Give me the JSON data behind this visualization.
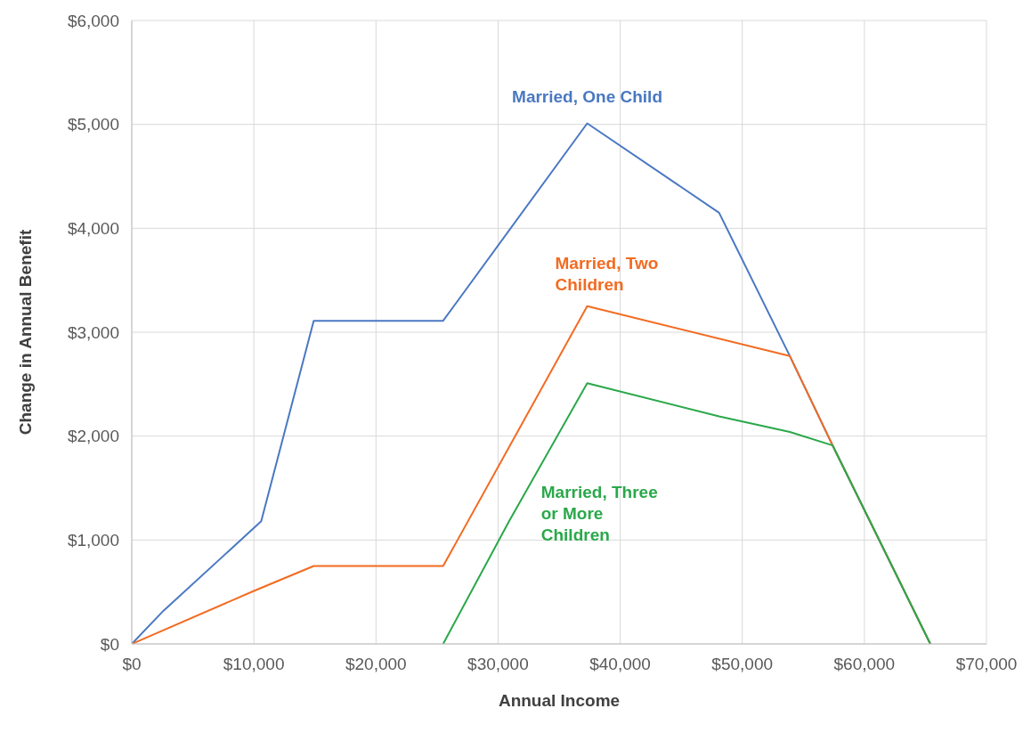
{
  "chart_data": {
    "type": "line",
    "xlabel": "Annual Income",
    "ylabel": "Change in Annual Benefit",
    "xlim": [
      0,
      70000
    ],
    "xticks": [
      {
        "value": 0,
        "label": "$0"
      },
      {
        "value": 10000,
        "label": "$10,000"
      },
      {
        "value": 20000,
        "label": "$20,000"
      },
      {
        "value": 30000,
        "label": "$30,000"
      },
      {
        "value": 40000,
        "label": "$40,000"
      },
      {
        "value": 50000,
        "label": "$50,000"
      },
      {
        "value": 60000,
        "label": "$60,000"
      },
      {
        "value": 70000,
        "label": "$70,000"
      }
    ],
    "ylim": [
      0,
      6000
    ],
    "yticks": [
      {
        "value": 0,
        "label": "$0"
      },
      {
        "value": 1000,
        "label": "$1,000"
      },
      {
        "value": 2000,
        "label": "$2,000"
      },
      {
        "value": 3000,
        "label": "$3,000"
      },
      {
        "value": 4000,
        "label": "$4,000"
      },
      {
        "value": 5000,
        "label": "$5,000"
      },
      {
        "value": 6000,
        "label": "$6,000"
      }
    ],
    "grid": true,
    "marker": "none",
    "line_style": "solid",
    "series": [
      {
        "name": "Married, One Child",
        "color": "#4a78c2",
        "x": [
          0,
          2600,
          10600,
          14900,
          25500,
          37300,
          48100,
          53900,
          57400,
          65400
        ],
        "values": [
          0,
          320,
          1180,
          3110,
          3110,
          5010,
          4150,
          2770,
          1910,
          0
        ]
      },
      {
        "name": "Married, Two Children",
        "color": "#f26b21",
        "x": [
          0,
          10000,
          14900,
          25500,
          37300,
          53900,
          57400,
          65400
        ],
        "values": [
          0,
          510,
          750,
          750,
          3250,
          2770,
          1910,
          0
        ]
      },
      {
        "name": "Married, Three or More Children",
        "color": "#2aa84a",
        "x": [
          25500,
          30900,
          37300,
          48100,
          53900,
          57400,
          65400
        ],
        "values": [
          0,
          1180,
          2510,
          2190,
          2040,
          1910,
          0
        ]
      }
    ]
  }
}
